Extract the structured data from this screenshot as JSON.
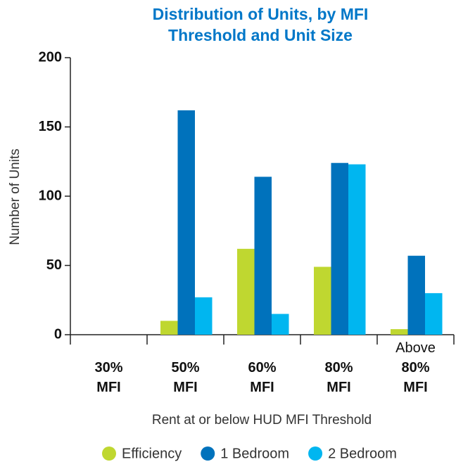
{
  "chart_data": {
    "type": "bar",
    "title": "Distribution of Units, by MFI Threshold and Unit Size",
    "x_label": "Rent at or below HUD MFI Threshold",
    "y_label": "Number of Units",
    "categories": [
      "30% MFI",
      "50% MFI",
      "60% MFI",
      "80% MFI",
      "Above 80% MFI"
    ],
    "series": [
      {
        "name": "Efficiency",
        "color": "#bfd730",
        "values": [
          0,
          10,
          62,
          49,
          4
        ]
      },
      {
        "name": "1 Bedroom",
        "color": "#0072bc",
        "values": [
          0,
          162,
          114,
          124,
          57
        ]
      },
      {
        "name": "2 Bedroom",
        "color": "#00b6f0",
        "values": [
          0,
          27,
          15,
          123,
          30
        ]
      }
    ],
    "ylim": [
      0,
      200
    ],
    "yticks": [
      0,
      50,
      100,
      150,
      200
    ],
    "grid": false,
    "legend": "bottom"
  }
}
